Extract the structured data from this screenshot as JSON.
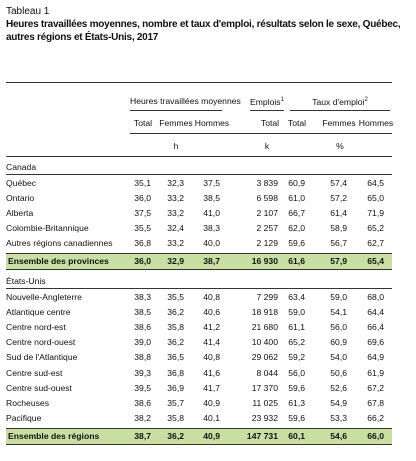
{
  "header": {
    "label": "Tableau 1",
    "title": "Heures travaillées moyennes, nombre et taux d'emploi, résultats selon le sexe, Québec, autres régions et États-Unis, 2017"
  },
  "table": {
    "groups": [
      {
        "label": "Heures travaillées moyennes"
      },
      {
        "label": "Emplois",
        "note": "1"
      },
      {
        "label": "Taux d'emploi",
        "note": "2"
      }
    ],
    "columns": [
      "Total",
      "Femmes",
      "Hommes",
      "Total",
      "Total",
      "Femmes",
      "Hommes"
    ],
    "units": [
      "h",
      "k",
      "%"
    ],
    "sections": [
      {
        "name": "Canada",
        "rows": [
          [
            "Québec",
            "35,1",
            "32,3",
            "37,5",
            "3 839",
            "60,9",
            "57,4",
            "64,5"
          ],
          [
            "Ontario",
            "36,0",
            "33,2",
            "38,5",
            "6 598",
            "61,0",
            "57,2",
            "65,0"
          ],
          [
            "Alberta",
            "37,5",
            "33,2",
            "41,0",
            "2 107",
            "66,7",
            "61,4",
            "71,9"
          ],
          [
            "Colombie-Britannique",
            "35,5",
            "32,4",
            "38,3",
            "2 257",
            "62,0",
            "58,9",
            "65,2"
          ],
          [
            "Autres régions canadiennes",
            "36,8",
            "33,2",
            "40,0",
            "2 129",
            "59,6",
            "56,7",
            "62,7"
          ]
        ],
        "total": [
          "Ensemble des provinces",
          "36,0",
          "32,9",
          "38,7",
          "16 930",
          "61,6",
          "57,9",
          "65,4"
        ]
      },
      {
        "name": "États-Unis",
        "rows": [
          [
            "Nouvelle-Angleterre",
            "38,3",
            "35,5",
            "40,8",
            "7 299",
            "63,4",
            "59,0",
            "68,0"
          ],
          [
            "Atlantique centre",
            "38,5",
            "36,2",
            "40,6",
            "18 918",
            "59,0",
            "54,1",
            "64,4"
          ],
          [
            "Centre nord-est",
            "38,6",
            "35,8",
            "41,2",
            "21 680",
            "61,1",
            "56,0",
            "66,4"
          ],
          [
            "Centre nord-ouest",
            "39,0",
            "36,2",
            "41,4",
            "10 400",
            "65,2",
            "60,9",
            "69,6"
          ],
          [
            "Sud de l'Atlantique",
            "38,8",
            "36,5",
            "40,8",
            "29 062",
            "59,2",
            "54,0",
            "64,9"
          ],
          [
            "Centre sud-est",
            "39,3",
            "36,8",
            "41,6",
            "8 044",
            "56,0",
            "50,6",
            "61,9"
          ],
          [
            "Centre sud-ouest",
            "39,5",
            "36,9",
            "41,7",
            "17 370",
            "59,6",
            "52,6",
            "67,2"
          ],
          [
            "Rocheuses",
            "38,6",
            "35,7",
            "40,9",
            "11 025",
            "61,3",
            "54,9",
            "67,8"
          ],
          [
            "Pacifique",
            "38,2",
            "35,8",
            "40,1",
            "23 932",
            "59,6",
            "53,3",
            "66,2"
          ]
        ],
        "total": [
          "Ensemble des régions",
          "38,7",
          "36,2",
          "40,9",
          "147 731",
          "60,1",
          "54,6",
          "66,0"
        ]
      }
    ]
  }
}
